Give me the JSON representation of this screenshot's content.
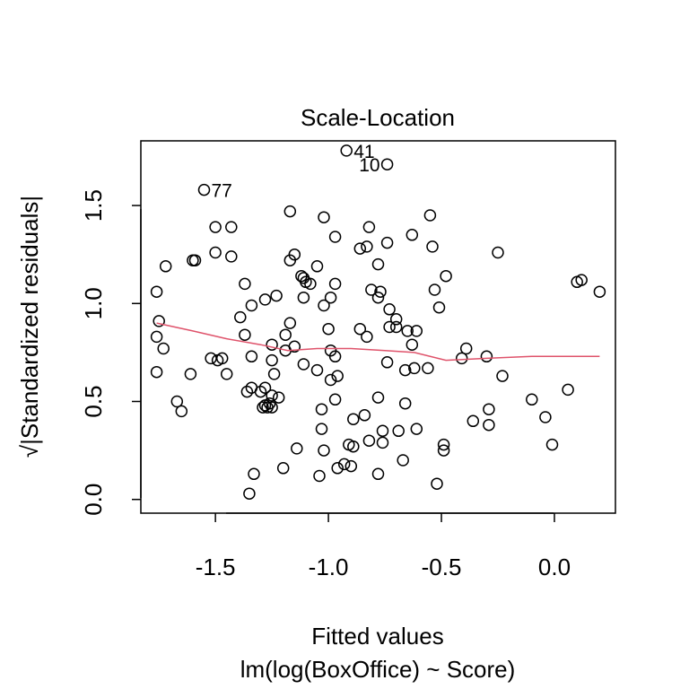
{
  "chart_data": {
    "type": "scatter",
    "title": "Scale-Location",
    "xlabel": "Fitted values",
    "subtitle": "lm(log(BoxOffice) ~ Score)",
    "ylabel": "√|Standardized residuals|",
    "xlim": [
      -1.83,
      0.27
    ],
    "ylim": [
      -0.07,
      1.83
    ],
    "x_ticks": [
      -1.5,
      -1.0,
      -0.5,
      0.0
    ],
    "x_tick_labels": [
      "-1.5",
      "-1.0",
      "-0.5",
      "0.0"
    ],
    "y_ticks": [
      0.0,
      0.5,
      1.0,
      1.5
    ],
    "y_tick_labels": [
      "0.0",
      "0.5",
      "1.0",
      "1.5"
    ],
    "grid": false,
    "legend": "none",
    "colors": {
      "points": "#000000",
      "smoother": "#DF536B"
    },
    "point_labels": [
      {
        "text": "41",
        "x": -0.92,
        "y": 1.78
      },
      {
        "text": "10",
        "x": -0.74,
        "y": 1.71
      },
      {
        "text": "77",
        "x": -1.55,
        "y": 1.58
      }
    ],
    "points": [
      [
        -0.92,
        1.78
      ],
      [
        -0.74,
        1.71
      ],
      [
        -1.55,
        1.58
      ],
      [
        -1.17,
        1.47
      ],
      [
        -1.02,
        1.44
      ],
      [
        -0.55,
        1.45
      ],
      [
        -1.5,
        1.39
      ],
      [
        -1.43,
        1.39
      ],
      [
        -0.82,
        1.39
      ],
      [
        -0.63,
        1.35
      ],
      [
        -0.97,
        1.34
      ],
      [
        -0.74,
        1.31
      ],
      [
        -0.54,
        1.29
      ],
      [
        -0.83,
        1.29
      ],
      [
        -0.86,
        1.28
      ],
      [
        -1.5,
        1.26
      ],
      [
        -1.43,
        1.24
      ],
      [
        -0.25,
        1.26
      ],
      [
        -1.15,
        1.25
      ],
      [
        -1.59,
        1.22
      ],
      [
        -1.6,
        1.22
      ],
      [
        -1.17,
        1.22
      ],
      [
        -1.05,
        1.19
      ],
      [
        -0.78,
        1.2
      ],
      [
        -1.72,
        1.19
      ],
      [
        -0.48,
        1.14
      ],
      [
        -1.12,
        1.14
      ],
      [
        -1.11,
        1.13
      ],
      [
        -1.1,
        1.11
      ],
      [
        -1.08,
        1.1
      ],
      [
        -0.97,
        1.1
      ],
      [
        0.1,
        1.11
      ],
      [
        0.12,
        1.12
      ],
      [
        -1.37,
        1.1
      ],
      [
        -1.76,
        1.06
      ],
      [
        0.2,
        1.06
      ],
      [
        -0.53,
        1.07
      ],
      [
        -0.81,
        1.07
      ],
      [
        -0.77,
        1.06
      ],
      [
        -1.23,
        1.04
      ],
      [
        -1.28,
        1.02
      ],
      [
        -0.99,
        1.03
      ],
      [
        -1.11,
        1.03
      ],
      [
        -0.78,
        1.03
      ],
      [
        -1.34,
        0.99
      ],
      [
        -1.02,
        0.99
      ],
      [
        -0.51,
        0.98
      ],
      [
        -0.73,
        0.97
      ],
      [
        -1.39,
        0.93
      ],
      [
        -1.17,
        0.9
      ],
      [
        -0.7,
        0.92
      ],
      [
        -0.73,
        0.88
      ],
      [
        -0.7,
        0.88
      ],
      [
        -1.75,
        0.91
      ],
      [
        -0.86,
        0.87
      ],
      [
        -0.65,
        0.86
      ],
      [
        -0.61,
        0.86
      ],
      [
        -1.76,
        0.83
      ],
      [
        -1.37,
        0.84
      ],
      [
        -1.19,
        0.84
      ],
      [
        -1.0,
        0.87
      ],
      [
        -0.83,
        0.83
      ],
      [
        -1.73,
        0.77
      ],
      [
        -1.25,
        0.79
      ],
      [
        -1.15,
        0.78
      ],
      [
        -0.99,
        0.76
      ],
      [
        -0.63,
        0.79
      ],
      [
        -0.39,
        0.77
      ],
      [
        -0.41,
        0.72
      ],
      [
        -1.52,
        0.72
      ],
      [
        -1.49,
        0.71
      ],
      [
        -1.47,
        0.72
      ],
      [
        -1.34,
        0.73
      ],
      [
        -1.25,
        0.71
      ],
      [
        -1.19,
        0.76
      ],
      [
        -0.97,
        0.73
      ],
      [
        -0.3,
        0.73
      ],
      [
        -0.74,
        0.7
      ],
      [
        -1.76,
        0.65
      ],
      [
        -1.61,
        0.64
      ],
      [
        -1.45,
        0.64
      ],
      [
        -1.24,
        0.64
      ],
      [
        -1.11,
        0.69
      ],
      [
        -1.05,
        0.66
      ],
      [
        -0.99,
        0.61
      ],
      [
        -0.96,
        0.63
      ],
      [
        -0.66,
        0.66
      ],
      [
        -0.62,
        0.67
      ],
      [
        -0.56,
        0.67
      ],
      [
        -0.23,
        0.63
      ],
      [
        -1.67,
        0.5
      ],
      [
        -1.65,
        0.45
      ],
      [
        -1.36,
        0.55
      ],
      [
        -1.34,
        0.57
      ],
      [
        -1.3,
        0.55
      ],
      [
        -1.28,
        0.57
      ],
      [
        -1.25,
        0.53
      ],
      [
        -1.22,
        0.52
      ],
      [
        -0.97,
        0.51
      ],
      [
        -0.78,
        0.52
      ],
      [
        -0.66,
        0.49
      ],
      [
        -0.1,
        0.51
      ],
      [
        0.06,
        0.56
      ],
      [
        -1.29,
        0.47
      ],
      [
        -1.28,
        0.48
      ],
      [
        -1.27,
        0.47
      ],
      [
        -1.25,
        0.47
      ],
      [
        -1.26,
        0.49
      ],
      [
        -1.03,
        0.46
      ],
      [
        -0.89,
        0.41
      ],
      [
        -0.84,
        0.43
      ],
      [
        -0.29,
        0.46
      ],
      [
        -0.36,
        0.4
      ],
      [
        -0.29,
        0.38
      ],
      [
        -0.04,
        0.42
      ],
      [
        -1.03,
        0.36
      ],
      [
        -0.76,
        0.35
      ],
      [
        -0.69,
        0.35
      ],
      [
        -0.61,
        0.36
      ],
      [
        -0.76,
        0.29
      ],
      [
        -0.82,
        0.3
      ],
      [
        -0.91,
        0.28
      ],
      [
        -0.89,
        0.27
      ],
      [
        -1.02,
        0.25
      ],
      [
        -1.14,
        0.26
      ],
      [
        -0.49,
        0.28
      ],
      [
        -0.49,
        0.25
      ],
      [
        -0.01,
        0.28
      ],
      [
        -1.2,
        0.16
      ],
      [
        -1.04,
        0.12
      ],
      [
        -0.96,
        0.16
      ],
      [
        -0.93,
        0.18
      ],
      [
        -0.9,
        0.17
      ],
      [
        -0.78,
        0.13
      ],
      [
        -0.67,
        0.2
      ],
      [
        -0.52,
        0.08
      ],
      [
        -1.33,
        0.13
      ],
      [
        -1.35,
        0.03
      ]
    ],
    "smoother": [
      [
        -1.76,
        0.9
      ],
      [
        -1.6,
        0.86
      ],
      [
        -1.45,
        0.82
      ],
      [
        -1.3,
        0.79
      ],
      [
        -1.18,
        0.76
      ],
      [
        -1.05,
        0.77
      ],
      [
        -0.9,
        0.77
      ],
      [
        -0.75,
        0.76
      ],
      [
        -0.62,
        0.75
      ],
      [
        -0.48,
        0.71
      ],
      [
        -0.3,
        0.72
      ],
      [
        -0.1,
        0.73
      ],
      [
        0.2,
        0.73
      ]
    ]
  }
}
